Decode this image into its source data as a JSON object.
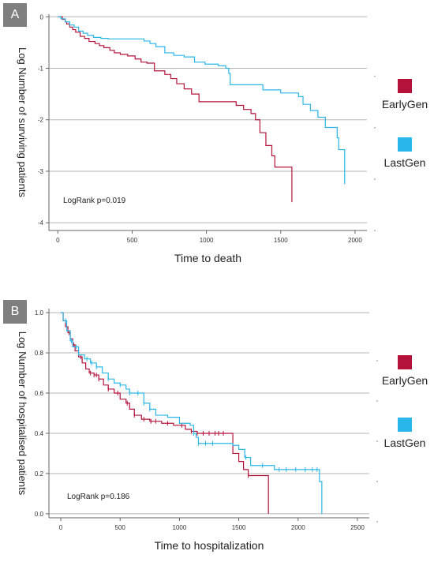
{
  "chart_data": [
    {
      "panel_label": "A",
      "type": "line",
      "step": true,
      "xlabel": "Time to death",
      "ylabel": "Log Number of surviving patients",
      "xlim": [
        -60,
        2080
      ],
      "ylim": [
        -4.15,
        0.05
      ],
      "xticks": [
        "0",
        "500",
        "1000",
        "1500",
        "2000"
      ],
      "xtick_values": [
        0,
        500,
        1000,
        1500,
        2000
      ],
      "yticks": [
        "0",
        "-1",
        "-2",
        "-3",
        "-4"
      ],
      "ytick_values": [
        0,
        -1,
        -2,
        -3,
        -4
      ],
      "grid": "horizontal",
      "annotation": "LogRank p=0.019",
      "legend_position": "right",
      "series": [
        {
          "name": "EarlyGen",
          "color": "#b5123a",
          "points": [
            [
              0,
              0
            ],
            [
              30,
              -0.05
            ],
            [
              50,
              -0.1
            ],
            [
              60,
              -0.14
            ],
            [
              80,
              -0.2
            ],
            [
              100,
              -0.25
            ],
            [
              120,
              -0.3
            ],
            [
              150,
              -0.38
            ],
            [
              180,
              -0.42
            ],
            [
              210,
              -0.48
            ],
            [
              250,
              -0.52
            ],
            [
              280,
              -0.56
            ],
            [
              310,
              -0.6
            ],
            [
              350,
              -0.65
            ],
            [
              380,
              -0.7
            ],
            [
              420,
              -0.73
            ],
            [
              470,
              -0.76
            ],
            [
              520,
              -0.82
            ],
            [
              560,
              -0.88
            ],
            [
              600,
              -0.9
            ],
            [
              650,
              -1.05
            ],
            [
              700,
              -1.05
            ],
            [
              720,
              -1.12
            ],
            [
              760,
              -1.2
            ],
            [
              800,
              -1.3
            ],
            [
              850,
              -1.4
            ],
            [
              900,
              -1.5
            ],
            [
              950,
              -1.65
            ],
            [
              1000,
              -1.65
            ],
            [
              1050,
              -1.65
            ],
            [
              1100,
              -1.65
            ],
            [
              1150,
              -1.65
            ],
            [
              1200,
              -1.72
            ],
            [
              1250,
              -1.8
            ],
            [
              1300,
              -1.88
            ],
            [
              1330,
              -2.0
            ],
            [
              1360,
              -2.25
            ],
            [
              1400,
              -2.5
            ],
            [
              1440,
              -2.7
            ],
            [
              1460,
              -2.92
            ],
            [
              1480,
              -2.92
            ],
            [
              1550,
              -2.92
            ],
            [
              1575,
              -3.6
            ]
          ]
        },
        {
          "name": "LastGen",
          "color": "#29b6e8",
          "points": [
            [
              0,
              0
            ],
            [
              20,
              -0.04
            ],
            [
              50,
              -0.1
            ],
            [
              80,
              -0.16
            ],
            [
              110,
              -0.2
            ],
            [
              140,
              -0.28
            ],
            [
              170,
              -0.32
            ],
            [
              200,
              -0.36
            ],
            [
              240,
              -0.4
            ],
            [
              290,
              -0.42
            ],
            [
              340,
              -0.43
            ],
            [
              400,
              -0.43
            ],
            [
              450,
              -0.43
            ],
            [
              500,
              -0.43
            ],
            [
              550,
              -0.43
            ],
            [
              580,
              -0.47
            ],
            [
              620,
              -0.52
            ],
            [
              660,
              -0.58
            ],
            [
              720,
              -0.7
            ],
            [
              780,
              -0.75
            ],
            [
              850,
              -0.78
            ],
            [
              920,
              -0.88
            ],
            [
              990,
              -0.92
            ],
            [
              1080,
              -0.95
            ],
            [
              1130,
              -1.0
            ],
            [
              1150,
              -1.1
            ],
            [
              1160,
              -1.32
            ],
            [
              1250,
              -1.32
            ],
            [
              1320,
              -1.32
            ],
            [
              1380,
              -1.42
            ],
            [
              1400,
              -1.42
            ],
            [
              1500,
              -1.48
            ],
            [
              1570,
              -1.48
            ],
            [
              1620,
              -1.55
            ],
            [
              1650,
              -1.7
            ],
            [
              1700,
              -1.82
            ],
            [
              1750,
              -1.95
            ],
            [
              1800,
              -2.15
            ],
            [
              1850,
              -2.15
            ],
            [
              1880,
              -2.35
            ],
            [
              1890,
              -2.58
            ],
            [
              1920,
              -2.58
            ],
            [
              1930,
              -3.25
            ]
          ]
        }
      ]
    },
    {
      "panel_label": "B",
      "type": "line",
      "step": true,
      "xlabel": "Time to hospitalization",
      "ylabel": "Log Number of hospitalised patients",
      "xlim": [
        -100,
        2600
      ],
      "ylim": [
        -0.02,
        1.02
      ],
      "xticks": [
        "0",
        "500",
        "1000",
        "1500",
        "2000",
        "2500"
      ],
      "xtick_values": [
        0,
        500,
        1000,
        1500,
        2000,
        2500
      ],
      "yticks": [
        "1.0",
        "0.8",
        "0.6",
        "0.4",
        "0.2",
        "0.0"
      ],
      "ytick_values": [
        1.0,
        0.8,
        0.6,
        0.4,
        0.2,
        0.0
      ],
      "grid": "horizontal",
      "annotation": "LogRank p=0.186",
      "legend_position": "right",
      "series": [
        {
          "name": "EarlyGen",
          "color": "#b5123a",
          "points": [
            [
              0,
              1.0
            ],
            [
              20,
              0.96
            ],
            [
              40,
              0.93
            ],
            [
              60,
              0.9
            ],
            [
              80,
              0.87
            ],
            [
              100,
              0.84
            ],
            [
              120,
              0.81
            ],
            [
              150,
              0.78
            ],
            [
              180,
              0.75
            ],
            [
              210,
              0.72
            ],
            [
              240,
              0.7
            ],
            [
              280,
              0.69
            ],
            [
              320,
              0.67
            ],
            [
              360,
              0.64
            ],
            [
              400,
              0.62
            ],
            [
              450,
              0.6
            ],
            [
              500,
              0.57
            ],
            [
              550,
              0.55
            ],
            [
              580,
              0.52
            ],
            [
              620,
              0.49
            ],
            [
              680,
              0.47
            ],
            [
              750,
              0.46
            ],
            [
              850,
              0.45
            ],
            [
              950,
              0.44
            ],
            [
              1050,
              0.42
            ],
            [
              1100,
              0.41
            ],
            [
              1150,
              0.4
            ],
            [
              1250,
              0.4
            ],
            [
              1350,
              0.4
            ],
            [
              1430,
              0.4
            ],
            [
              1450,
              0.3
            ],
            [
              1500,
              0.26
            ],
            [
              1540,
              0.22
            ],
            [
              1580,
              0.19
            ],
            [
              1700,
              0.19
            ],
            [
              1750,
              0.0
            ]
          ],
          "censored_x": [
            70,
            110,
            170,
            250,
            280,
            300,
            320,
            400,
            480,
            560,
            620,
            700,
            760,
            800,
            900,
            1020,
            1100,
            1150,
            1200,
            1250,
            1300,
            1330,
            1370,
            1580
          ]
        },
        {
          "name": "LastGen",
          "color": "#29b6e8",
          "points": [
            [
              0,
              1.0
            ],
            [
              20,
              0.96
            ],
            [
              50,
              0.91
            ],
            [
              80,
              0.86
            ],
            [
              100,
              0.83
            ],
            [
              150,
              0.79
            ],
            [
              200,
              0.77
            ],
            [
              250,
              0.75
            ],
            [
              300,
              0.73
            ],
            [
              350,
              0.7
            ],
            [
              400,
              0.67
            ],
            [
              450,
              0.65
            ],
            [
              500,
              0.64
            ],
            [
              550,
              0.62
            ],
            [
              580,
              0.6
            ],
            [
              640,
              0.6
            ],
            [
              700,
              0.55
            ],
            [
              750,
              0.52
            ],
            [
              800,
              0.49
            ],
            [
              900,
              0.48
            ],
            [
              1000,
              0.45
            ],
            [
              1090,
              0.44
            ],
            [
              1120,
              0.4
            ],
            [
              1140,
              0.38
            ],
            [
              1160,
              0.35
            ],
            [
              1250,
              0.35
            ],
            [
              1300,
              0.35
            ],
            [
              1400,
              0.35
            ],
            [
              1450,
              0.34
            ],
            [
              1500,
              0.32
            ],
            [
              1550,
              0.28
            ],
            [
              1600,
              0.24
            ],
            [
              1750,
              0.24
            ],
            [
              1800,
              0.22
            ],
            [
              1900,
              0.22
            ],
            [
              2000,
              0.22
            ],
            [
              2100,
              0.22
            ],
            [
              2150,
              0.22
            ],
            [
              2180,
              0.16
            ],
            [
              2200,
              0.0
            ]
          ],
          "censored_x": [
            40,
            90,
            130,
            220,
            260,
            300,
            400,
            500,
            580,
            650,
            700,
            750,
            1120,
            1160,
            1220,
            1280,
            1560,
            1700,
            1840,
            1900,
            1980,
            2060,
            2120,
            2160
          ]
        }
      ]
    }
  ]
}
